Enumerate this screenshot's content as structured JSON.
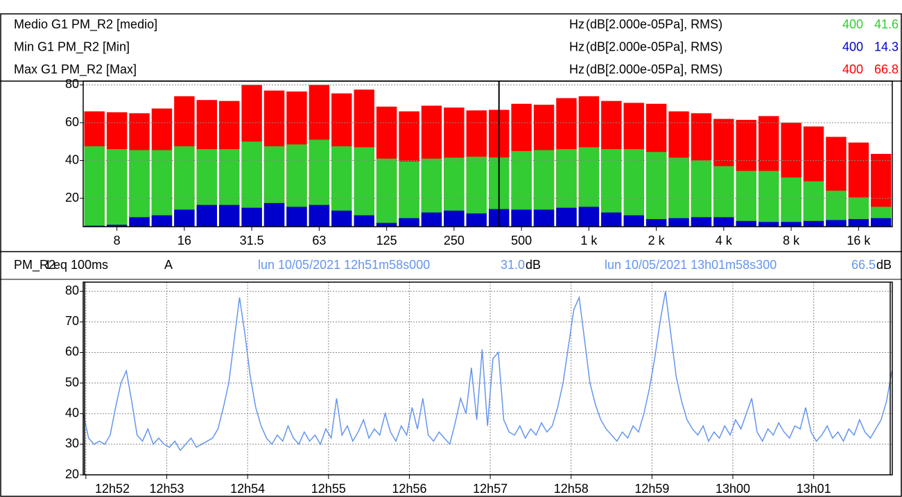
{
  "chart_data": [
    {
      "type": "bar",
      "x_unit": "Hz",
      "y_unit": "(dB[2.000e-05Pa], RMS)",
      "cursor_x": 400,
      "categories": [
        null,
        "8",
        null,
        null,
        "16",
        null,
        null,
        "31.5",
        null,
        null,
        "63",
        null,
        null,
        "125",
        null,
        null,
        "250",
        null,
        null,
        "500",
        null,
        null,
        "1 k",
        null,
        null,
        "2 k",
        null,
        null,
        "4 k",
        null,
        null,
        "8 k",
        null,
        null,
        "16 k",
        null
      ],
      "series": [
        {
          "name": "Medio G1 PM_R2 [medio]",
          "color": "#33cc33",
          "cursor_value": 41.6,
          "values": [
            47.5,
            46,
            45.5,
            45.5,
            47.5,
            46,
            46,
            50,
            47.5,
            48.5,
            51,
            47.5,
            47,
            41,
            39.5,
            41,
            41.5,
            42,
            41.6,
            45,
            45.5,
            46,
            47,
            46,
            46,
            44.5,
            41.5,
            40,
            37,
            34.5,
            34.5,
            31,
            29,
            24,
            20.5,
            15.5
          ]
        },
        {
          "name": "Min G1 PM_R2 [Min]",
          "color": "#0000cc",
          "cursor_value": 14.3,
          "values": [
            5.5,
            6,
            10,
            11,
            14,
            16.5,
            16.5,
            15,
            17.5,
            15.5,
            16.5,
            13.5,
            11,
            7,
            9.5,
            12.5,
            13.5,
            12,
            14.3,
            14,
            14,
            15,
            15.5,
            12.5,
            11,
            9,
            9.5,
            10,
            10,
            8,
            7.5,
            7.5,
            8,
            8.5,
            9,
            9.5
          ]
        },
        {
          "name": "Max G1 PM_R2 [Max]",
          "color": "#ff0000",
          "cursor_value": 66.8,
          "values": [
            66,
            65.5,
            65,
            67.5,
            74,
            72,
            71.5,
            80,
            77,
            76.5,
            80,
            75.5,
            77.5,
            68.5,
            66,
            69,
            68,
            66.5,
            66.8,
            70,
            69.5,
            73,
            74,
            71.5,
            70.5,
            70,
            66,
            65,
            62,
            61.5,
            63.5,
            60,
            58,
            52.5,
            49.5,
            43.5
          ]
        }
      ],
      "ylim": [
        5,
        82
      ],
      "yticks": [
        20,
        40,
        60,
        80
      ],
      "grid": true
    },
    {
      "type": "line",
      "title": "PM_R2",
      "subtitle": "Leq 100ms",
      "weighting": "A",
      "cursors": [
        {
          "time": "lun 10/05/2021 12h51m58s000",
          "value": {
            "value": 31,
            "label": "31.0"
          },
          "unit": "dB"
        },
        {
          "time": "lun 10/05/2021 13h01m58s300",
          "value": {
            "value": 66.5,
            "label": "66.5"
          },
          "unit": "dB"
        }
      ],
      "color": "#6495ed",
      "x": [
        46318,
        46322,
        46326,
        46330,
        46334,
        46338,
        46342,
        46346,
        46350,
        46354,
        46358,
        46362,
        46366,
        46370,
        46374,
        46378,
        46382,
        46386,
        46390,
        46394,
        46398,
        46402,
        46406,
        46410,
        46414,
        46418,
        46422,
        46426,
        46430,
        46434,
        46438,
        46442,
        46446,
        46450,
        46454,
        46458,
        46462,
        46466,
        46470,
        46474,
        46478,
        46482,
        46486,
        46490,
        46494,
        46498,
        46502,
        46506,
        46510,
        46514,
        46518,
        46522,
        46526,
        46530,
        46534,
        46538,
        46542,
        46546,
        46550,
        46554,
        46558,
        46562,
        46566,
        46570,
        46574,
        46578,
        46582,
        46586,
        46590,
        46594,
        46598,
        46602,
        46606,
        46610,
        46614,
        46618,
        46622,
        46626,
        46630,
        46634,
        46638,
        46642,
        46646,
        46650,
        46654,
        46658,
        46662,
        46666,
        46670,
        46674,
        46678,
        46682,
        46686,
        46690,
        46694,
        46698,
        46702,
        46706,
        46710,
        46714,
        46718,
        46722,
        46726,
        46730,
        46734,
        46738,
        46742,
        46746,
        46750,
        46754,
        46758,
        46762,
        46766,
        46770,
        46774,
        46778,
        46782,
        46786,
        46790,
        46794,
        46798,
        46802,
        46806,
        46810,
        46814,
        46818,
        46822,
        46826,
        46830,
        46834,
        46838,
        46842,
        46846,
        46850,
        46854,
        46858,
        46862,
        46866,
        46870,
        46874,
        46878,
        46882,
        46886,
        46890,
        46894,
        46898,
        46902,
        46906,
        46910,
        46914,
        46918
      ],
      "values": [
        40,
        32,
        30,
        31,
        30,
        33,
        42,
        50,
        54,
        44,
        33,
        31,
        35,
        30,
        32,
        30,
        29,
        31,
        28,
        30,
        32,
        29,
        30,
        31,
        32,
        35,
        42,
        50,
        64,
        78,
        66,
        52,
        42,
        36,
        32,
        30,
        33,
        31,
        36,
        32,
        30,
        34,
        31,
        33,
        30,
        35,
        32,
        45,
        33,
        36,
        31,
        34,
        38,
        32,
        35,
        33,
        40,
        34,
        31,
        36,
        33,
        42,
        35,
        45,
        33,
        31,
        34,
        32,
        30,
        37,
        45,
        40,
        55,
        38,
        61,
        36,
        58,
        60,
        38,
        34,
        33,
        36,
        32,
        35,
        33,
        37,
        34,
        36,
        42,
        50,
        62,
        74,
        78,
        64,
        50,
        43,
        38,
        35,
        33,
        31,
        34,
        32,
        36,
        34,
        40,
        48,
        58,
        70,
        80,
        66,
        52,
        44,
        38,
        35,
        33,
        36,
        31,
        34,
        32,
        36,
        33,
        38,
        35,
        40,
        45,
        34,
        31,
        35,
        33,
        37,
        34,
        32,
        36,
        35,
        42,
        34,
        31,
        33,
        36,
        32,
        34,
        31,
        35,
        33,
        38,
        34,
        32,
        35,
        38,
        44,
        54
      ],
      "xlim": [
        46318,
        46918.3
      ],
      "xticks": [
        {
          "value": 46320,
          "label": "12h52"
        },
        {
          "value": 46380,
          "label": "12h53"
        },
        {
          "value": 46440,
          "label": "12h54"
        },
        {
          "value": 46500,
          "label": "12h55"
        },
        {
          "value": 46560,
          "label": "12h56"
        },
        {
          "value": 46620,
          "label": "12h57"
        },
        {
          "value": 46680,
          "label": "12h58"
        },
        {
          "value": 46740,
          "label": "12h59"
        },
        {
          "value": 46800,
          "label": "13h00"
        },
        {
          "value": 46860,
          "label": "13h01"
        }
      ],
      "ylim": [
        20,
        83
      ],
      "yticks": [
        20,
        30,
        40,
        50,
        60,
        70,
        80
      ],
      "grid": true
    }
  ]
}
